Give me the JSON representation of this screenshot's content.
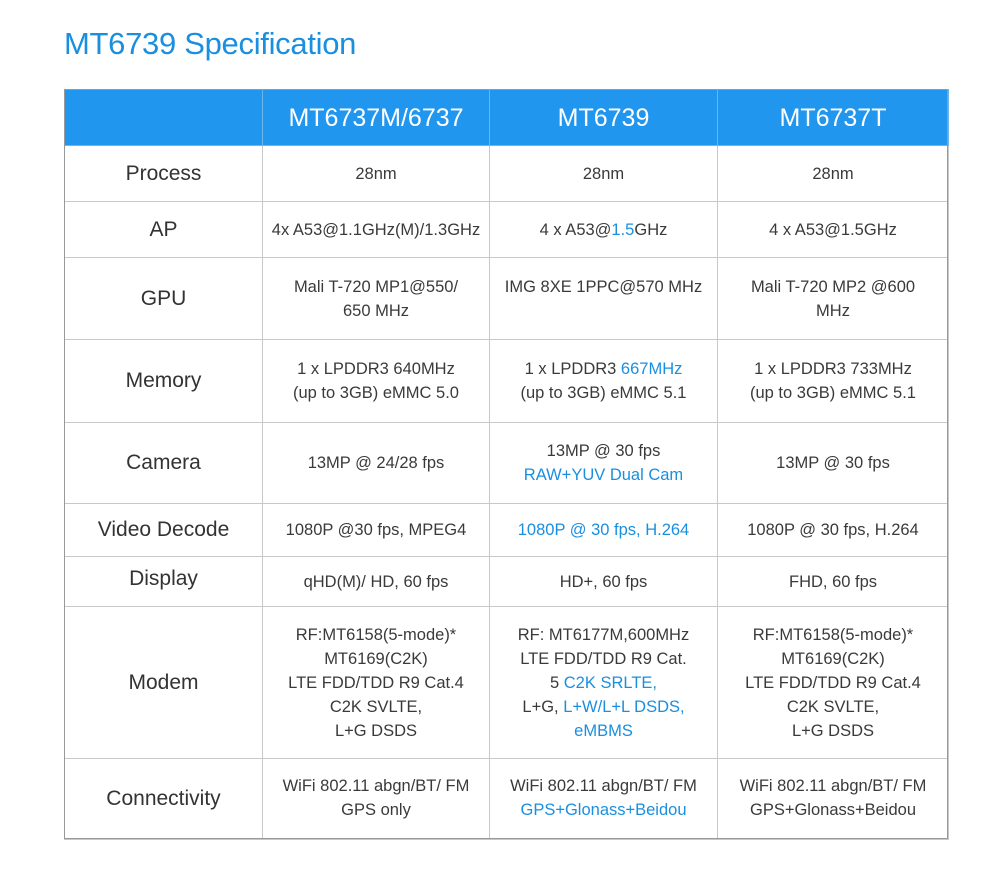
{
  "page": {
    "title": "MT6739 Specification"
  },
  "colors": {
    "title": "#1a8fdf",
    "header_bg": "#2196ef",
    "header_text": "#ffffff",
    "highlight": "#1a8fdf",
    "body_text": "#3a3a3a",
    "border": "#c8c8c8"
  },
  "table": {
    "columns": [
      "",
      "MT6737M/6737",
      "MT6739",
      "MT6737T"
    ],
    "rows": {
      "process": {
        "label": "Process",
        "c1": "28nm",
        "c2": "28nm",
        "c3": "28nm"
      },
      "ap": {
        "label": "AP",
        "c1": "4x A53@1.1GHz(M)/1.3GHz",
        "c2_a": "4 x A53@",
        "c2_b": "1.5",
        "c2_c": "GHz",
        "c3": "4 x A53@1.5GHz"
      },
      "gpu": {
        "label": "GPU",
        "c1_l1": "Mali T-720 MP1@550/",
        "c1_l2": "650 MHz",
        "c2": "IMG 8XE 1PPC@570 MHz",
        "c3_l1": "Mali T-720 MP2 @600",
        "c3_l2": "MHz"
      },
      "memory": {
        "label": "Memory",
        "c1_l1": "1 x LPDDR3 640MHz",
        "c1_l2": "(up to 3GB) eMMC 5.0",
        "c2_l1a": "1 x LPDDR3 ",
        "c2_l1b": "667MHz",
        "c2_l2": "(up to 3GB) eMMC 5.1",
        "c3_l1": "1 x LPDDR3 733MHz",
        "c3_l2": "(up to 3GB) eMMC 5.1"
      },
      "camera": {
        "label": "Camera",
        "c1": "13MP @ 24/28 fps",
        "c2_l1": "13MP @ 30 fps",
        "c2_l2": "RAW+YUV Dual Cam",
        "c3": "13MP @ 30 fps"
      },
      "video_decode": {
        "label": "Video Decode",
        "c1": "1080P @30 fps, MPEG4",
        "c2": "1080P @ 30 fps, H.264",
        "c3": "1080P @ 30 fps, H.264"
      },
      "display": {
        "label": "Display",
        "c1": "qHD(M)/ HD, 60 fps",
        "c2": "HD+, 60 fps",
        "c3": "FHD, 60 fps"
      },
      "modem": {
        "label": "Modem",
        "c1_lines": [
          "RF:MT6158(5-mode)*",
          "MT6169(C2K)",
          "LTE FDD/TDD R9 Cat.4",
          "C2K SVLTE,",
          "L+G DSDS"
        ],
        "c2_l1": "RF: MT6177M,600MHz",
        "c2_l2": "LTE FDD/TDD R9 Cat.",
        "c2_l3a": "5 ",
        "c2_l3b": "C2K SRLTE,",
        "c2_l4a": "L+G, ",
        "c2_l4b": "L+W/L+L DSDS,",
        "c2_l5": "eMBMS",
        "c3_lines": [
          "RF:MT6158(5-mode)*",
          "MT6169(C2K)",
          "LTE FDD/TDD R9 Cat.4",
          "C2K SVLTE,",
          "L+G DSDS"
        ]
      },
      "connectivity": {
        "label": "Connectivity",
        "c1_l1": "WiFi 802.11 abgn/BT/ FM",
        "c1_l2": "GPS only",
        "c2_l1": "WiFi 802.11 abgn/BT/ FM",
        "c2_l2": "GPS+Glonass+Beidou",
        "c3_l1": "WiFi 802.11 abgn/BT/ FM",
        "c3_l2": "GPS+Glonass+Beidou"
      }
    }
  }
}
